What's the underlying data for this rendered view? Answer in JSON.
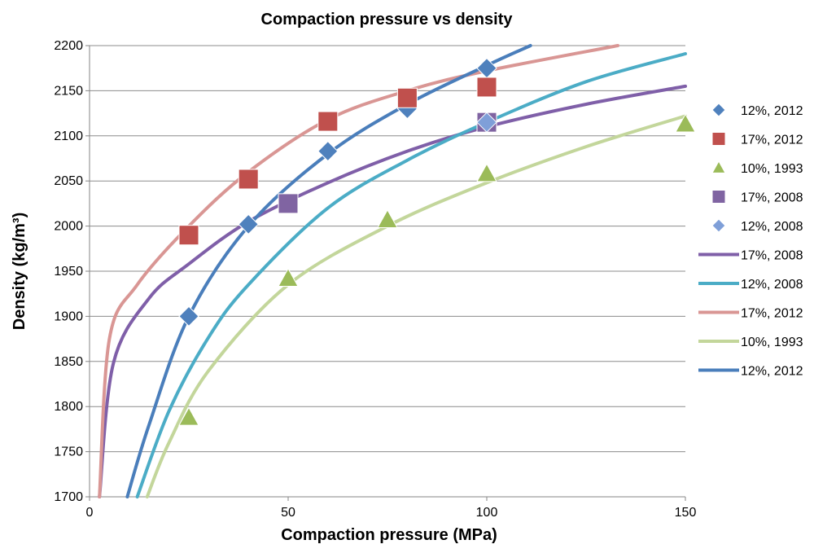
{
  "chart_data": {
    "type": "scatter",
    "title": "Compaction pressure vs density",
    "xlabel": "Compaction pressure (MPa)",
    "ylabel": "Density (kg/m³)",
    "xlim": [
      0,
      150
    ],
    "ylim": [
      1700,
      2200
    ],
    "x_ticks": [
      "0",
      "50",
      "100",
      "150"
    ],
    "y_ticks": [
      "1700",
      "1750",
      "1800",
      "1850",
      "1900",
      "1950",
      "2000",
      "2050",
      "2100",
      "2150",
      "2200"
    ],
    "grid": "horizontal",
    "legend_position": "right",
    "series": [
      {
        "name": "12%, 2012",
        "kind": "markers",
        "marker": "diamond",
        "color": "#4f81bd",
        "points": [
          [
            25,
            1900
          ],
          [
            40,
            2002
          ],
          [
            60,
            2083
          ],
          [
            80,
            2130
          ],
          [
            100,
            2175
          ]
        ]
      },
      {
        "name": "17%, 2012",
        "kind": "markers",
        "marker": "square",
        "color": "#c0504d",
        "points": [
          [
            25,
            1990
          ],
          [
            40,
            2052
          ],
          [
            60,
            2116
          ],
          [
            80,
            2142
          ],
          [
            100,
            2154
          ]
        ]
      },
      {
        "name": "10%, 1993",
        "kind": "markers",
        "marker": "triangle",
        "color": "#9bbb59",
        "points": [
          [
            25,
            1788
          ],
          [
            50,
            1942
          ],
          [
            75,
            2007
          ],
          [
            100,
            2058
          ],
          [
            150,
            2113
          ]
        ]
      },
      {
        "name": "17%, 2008",
        "kind": "markers",
        "marker": "square",
        "color": "#8064a2",
        "points": [
          [
            50,
            2025
          ],
          [
            100,
            2115
          ]
        ]
      },
      {
        "name": "12%, 2008",
        "kind": "markers",
        "marker": "diamond",
        "color": "#7f9fd8",
        "points": [
          [
            100,
            2115
          ]
        ]
      },
      {
        "name": "17%, 2008",
        "kind": "line",
        "color": "#7f5fa8",
        "points": [
          [
            2.5,
            1700
          ],
          [
            6,
            1848
          ],
          [
            15,
            1920
          ],
          [
            25,
            1958
          ],
          [
            40,
            2005
          ],
          [
            60,
            2048
          ],
          [
            80,
            2083
          ],
          [
            100,
            2110
          ],
          [
            125,
            2135
          ],
          [
            150,
            2155
          ]
        ]
      },
      {
        "name": "12%, 2008",
        "kind": "line",
        "color": "#4bacc6",
        "points": [
          [
            12,
            1700
          ],
          [
            20,
            1795
          ],
          [
            30,
            1877
          ],
          [
            40,
            1935
          ],
          [
            60,
            2020
          ],
          [
            80,
            2073
          ],
          [
            100,
            2115
          ],
          [
            125,
            2160
          ],
          [
            150,
            2191
          ]
        ]
      },
      {
        "name": "17%, 2012",
        "kind": "line",
        "color": "#d99694",
        "points": [
          [
            2.5,
            1700
          ],
          [
            5,
            1875
          ],
          [
            12,
            1935
          ],
          [
            25,
            2000
          ],
          [
            40,
            2060
          ],
          [
            60,
            2118
          ],
          [
            80,
            2150
          ],
          [
            100,
            2172
          ],
          [
            133,
            2200
          ]
        ]
      },
      {
        "name": "10%, 1993",
        "kind": "line",
        "color": "#c3d69b",
        "points": [
          [
            14.5,
            1700
          ],
          [
            20,
            1760
          ],
          [
            30,
            1840
          ],
          [
            50,
            1935
          ],
          [
            75,
            2000
          ],
          [
            100,
            2048
          ],
          [
            125,
            2088
          ],
          [
            150,
            2122
          ]
        ]
      },
      {
        "name": "12%, 2012",
        "kind": "line",
        "color": "#4a7ebb",
        "points": [
          [
            9.5,
            1700
          ],
          [
            15,
            1780
          ],
          [
            25,
            1900
          ],
          [
            40,
            2000
          ],
          [
            60,
            2080
          ],
          [
            80,
            2135
          ],
          [
            100,
            2178
          ],
          [
            111,
            2200
          ]
        ]
      }
    ]
  }
}
